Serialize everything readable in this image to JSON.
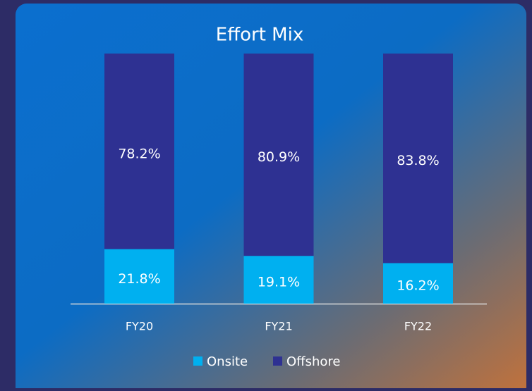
{
  "chart_data": {
    "type": "bar",
    "stacked": true,
    "title": "Effort Mix",
    "categories": [
      "FY20",
      "FY21",
      "FY22"
    ],
    "series": [
      {
        "name": "Onsite",
        "color": "#00b0f0",
        "values": [
          21.8,
          19.1,
          16.2
        ],
        "value_labels": [
          "21.8%",
          "19.1%",
          "16.2%"
        ]
      },
      {
        "name": "Offshore",
        "color": "#2e3192",
        "values": [
          78.2,
          80.9,
          83.8
        ],
        "value_labels": [
          "78.2%",
          "80.9%",
          "83.8%"
        ]
      }
    ]
  }
}
